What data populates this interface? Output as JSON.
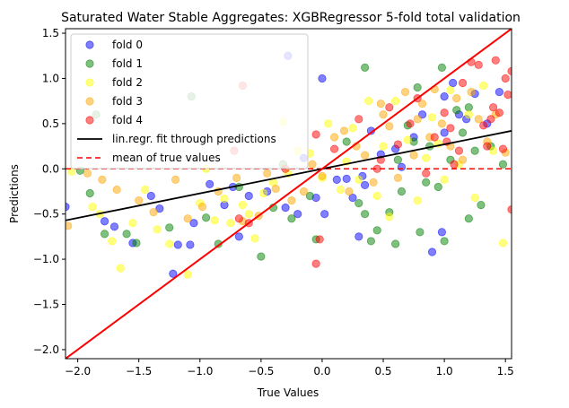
{
  "chart_data": {
    "type": "scatter",
    "title": "Saturated Water Stable Aggregates: XGBRegressor 5-fold total validation",
    "xlabel": "True Values",
    "ylabel": "Predictions",
    "xlim": [
      -2.1,
      1.55
    ],
    "ylim": [
      -2.1,
      1.55
    ],
    "xticks": [
      -2.0,
      -1.5,
      -1.0,
      -0.5,
      0.0,
      0.5,
      1.0,
      1.5
    ],
    "xtick_labels": [
      "−2.0",
      "−1.5",
      "−1.0",
      "−0.5",
      "0.0",
      "0.5",
      "1.0",
      "1.5"
    ],
    "yticks": [
      -2.0,
      -1.5,
      -1.0,
      -0.5,
      0.0,
      0.5,
      1.0,
      1.5
    ],
    "ytick_labels": [
      "−2.0",
      "−1.5",
      "−1.0",
      "−0.5",
      "0.0",
      "0.5",
      "1.0",
      "1.5"
    ],
    "grid": false,
    "legend_position": "top-left",
    "series": [
      {
        "name": "fold 0",
        "color": "#0000ff",
        "points": [
          [
            -2.1,
            -0.42
          ],
          [
            -1.78,
            -0.58
          ],
          [
            -1.7,
            -0.64
          ],
          [
            -1.55,
            -0.82
          ],
          [
            -1.4,
            -0.3
          ],
          [
            -1.33,
            -0.44
          ],
          [
            -1.22,
            -1.16
          ],
          [
            -1.18,
            -0.84
          ],
          [
            -1.08,
            -0.84
          ],
          [
            -1.05,
            -0.6
          ],
          [
            -0.92,
            -0.17
          ],
          [
            -0.8,
            -0.4
          ],
          [
            -0.73,
            -0.2
          ],
          [
            -0.68,
            -0.75
          ],
          [
            -0.6,
            -0.3
          ],
          [
            -0.45,
            -0.25
          ],
          [
            -0.3,
            -0.43
          ],
          [
            -0.28,
            1.25
          ],
          [
            -0.2,
            -0.5
          ],
          [
            -0.05,
            -0.32
          ],
          [
            0.0,
            1.0
          ],
          [
            0.02,
            -0.5
          ],
          [
            0.12,
            -0.12
          ],
          [
            0.2,
            -0.11
          ],
          [
            0.25,
            -0.32
          ],
          [
            0.3,
            -0.75
          ],
          [
            0.33,
            -0.08
          ],
          [
            0.35,
            -0.18
          ],
          [
            0.4,
            0.42
          ],
          [
            0.48,
            0.16
          ],
          [
            0.6,
            0.22
          ],
          [
            0.75,
            0.35
          ],
          [
            0.82,
            0.6
          ],
          [
            0.9,
            -0.92
          ],
          [
            0.98,
            -0.7
          ],
          [
            1.0,
            0.8
          ],
          [
            1.07,
            0.95
          ],
          [
            1.12,
            0.6
          ],
          [
            1.18,
            0.55
          ],
          [
            1.25,
            0.83
          ],
          [
            1.35,
            0.5
          ],
          [
            1.45,
            0.85
          ],
          [
            1.0,
            0.4
          ],
          [
            0.65,
            0.02
          ],
          [
            -0.15,
            0.12
          ]
        ]
      },
      {
        "name": "fold 1",
        "color": "#008000",
        "points": [
          [
            -1.98,
            -0.02
          ],
          [
            -1.9,
            -0.27
          ],
          [
            -1.85,
            0.6
          ],
          [
            -1.78,
            -0.72
          ],
          [
            -1.6,
            -0.72
          ],
          [
            -1.52,
            -0.82
          ],
          [
            -1.25,
            -0.65
          ],
          [
            -1.07,
            0.8
          ],
          [
            -0.95,
            -0.54
          ],
          [
            -0.85,
            -0.83
          ],
          [
            -0.68,
            -0.2
          ],
          [
            -0.5,
            -0.97
          ],
          [
            -0.4,
            -0.43
          ],
          [
            -0.32,
            0.05
          ],
          [
            -0.25,
            -0.55
          ],
          [
            -0.1,
            -0.3
          ],
          [
            -0.05,
            -0.78
          ],
          [
            0.2,
            0.3
          ],
          [
            0.3,
            -0.38
          ],
          [
            0.35,
            -0.5
          ],
          [
            0.4,
            -0.8
          ],
          [
            0.45,
            -0.68
          ],
          [
            0.55,
            -0.48
          ],
          [
            0.6,
            -0.83
          ],
          [
            0.62,
            0.1
          ],
          [
            0.65,
            -0.25
          ],
          [
            0.7,
            0.48
          ],
          [
            0.75,
            0.3
          ],
          [
            0.8,
            -0.7
          ],
          [
            0.85,
            -0.15
          ],
          [
            0.88,
            0.25
          ],
          [
            0.95,
            -0.2
          ],
          [
            1.0,
            -0.8
          ],
          [
            1.05,
            0.1
          ],
          [
            1.1,
            0.65
          ],
          [
            1.15,
            0.4
          ],
          [
            1.2,
            -0.55
          ],
          [
            1.25,
            0.2
          ],
          [
            1.3,
            -0.4
          ],
          [
            1.38,
            0.25
          ],
          [
            1.48,
            0.05
          ],
          [
            0.35,
            1.12
          ],
          [
            0.98,
            1.12
          ],
          [
            0.78,
            0.9
          ],
          [
            1.2,
            0.68
          ]
        ]
      },
      {
        "name": "fold 2",
        "color": "#ffff00",
        "points": [
          [
            -2.05,
            -0.03
          ],
          [
            -1.88,
            -0.42
          ],
          [
            -1.82,
            -0.5
          ],
          [
            -1.72,
            -0.8
          ],
          [
            -1.65,
            -1.1
          ],
          [
            -1.55,
            -0.6
          ],
          [
            -1.45,
            -0.23
          ],
          [
            -1.35,
            -0.67
          ],
          [
            -1.25,
            -0.83
          ],
          [
            -1.1,
            -1.17
          ],
          [
            -1.0,
            -0.38
          ],
          [
            -0.95,
            0.0
          ],
          [
            -0.88,
            -0.57
          ],
          [
            -0.8,
            -0.33
          ],
          [
            -0.75,
            -0.6
          ],
          [
            -0.65,
            -0.4
          ],
          [
            -0.55,
            -0.77
          ],
          [
            -0.48,
            -0.27
          ],
          [
            -0.4,
            -0.15
          ],
          [
            -0.32,
            0.52
          ],
          [
            -0.28,
            -0.05
          ],
          [
            -0.2,
            0.2
          ],
          [
            -0.1,
            0.17
          ],
          [
            0.0,
            -0.1
          ],
          [
            0.05,
            0.5
          ],
          [
            0.15,
            -0.23
          ],
          [
            0.25,
            0.45
          ],
          [
            0.3,
            -0.12
          ],
          [
            0.38,
            0.75
          ],
          [
            0.45,
            -0.3
          ],
          [
            0.5,
            0.25
          ],
          [
            0.55,
            -0.53
          ],
          [
            0.6,
            0.75
          ],
          [
            0.7,
            0.32
          ],
          [
            0.78,
            -0.35
          ],
          [
            0.85,
            0.12
          ],
          [
            0.9,
            0.57
          ],
          [
            0.95,
            0.28
          ],
          [
            1.0,
            -0.12
          ],
          [
            1.05,
            0.87
          ],
          [
            1.12,
            0.05
          ],
          [
            1.2,
            0.6
          ],
          [
            1.25,
            -0.32
          ],
          [
            1.32,
            0.92
          ],
          [
            1.4,
            0.2
          ],
          [
            1.48,
            -0.82
          ],
          [
            -0.6,
            -0.5
          ],
          [
            0.2,
            0.08
          ]
        ]
      },
      {
        "name": "fold 3",
        "color": "#ffa500",
        "points": [
          [
            -2.08,
            -0.63
          ],
          [
            -1.92,
            -0.05
          ],
          [
            -1.8,
            -0.12
          ],
          [
            -1.68,
            -0.23
          ],
          [
            -1.5,
            -0.35
          ],
          [
            -1.38,
            -0.48
          ],
          [
            -1.2,
            -0.12
          ],
          [
            -1.1,
            -0.55
          ],
          [
            -0.98,
            -0.42
          ],
          [
            -0.85,
            -0.25
          ],
          [
            -0.7,
            -0.1
          ],
          [
            -0.65,
            -0.58
          ],
          [
            -0.52,
            -0.52
          ],
          [
            -0.45,
            -0.05
          ],
          [
            -0.38,
            -0.22
          ],
          [
            -0.25,
            -0.35
          ],
          [
            -0.15,
            -0.25
          ],
          [
            -0.08,
            0.05
          ],
          [
            0.0,
            -0.08
          ],
          [
            0.1,
            0.35
          ],
          [
            0.18,
            0.42
          ],
          [
            0.22,
            -0.25
          ],
          [
            0.28,
            0.25
          ],
          [
            0.35,
            0.15
          ],
          [
            0.42,
            -0.15
          ],
          [
            0.48,
            0.72
          ],
          [
            0.5,
            0.6
          ],
          [
            0.55,
            0.47
          ],
          [
            0.62,
            -0.1
          ],
          [
            0.68,
            0.85
          ],
          [
            0.75,
            0.15
          ],
          [
            0.82,
            0.72
          ],
          [
            0.88,
            0.35
          ],
          [
            0.92,
            0.88
          ],
          [
            0.98,
            0.5
          ],
          [
            1.05,
            0.25
          ],
          [
            1.1,
            0.78
          ],
          [
            1.15,
            0.1
          ],
          [
            1.22,
            0.85
          ],
          [
            1.28,
            0.55
          ],
          [
            1.35,
            0.3
          ],
          [
            1.42,
            0.6
          ],
          [
            1.5,
            0.18
          ],
          [
            0.78,
            0.55
          ]
        ]
      },
      {
        "name": "fold 4",
        "color": "#ff0000",
        "points": [
          [
            -0.72,
            0.2
          ],
          [
            -0.65,
            0.92
          ],
          [
            -0.3,
            0.0
          ],
          [
            -0.05,
            0.38
          ],
          [
            -0.02,
            -0.78
          ],
          [
            -0.05,
            -1.05
          ],
          [
            0.1,
            0.22
          ],
          [
            0.3,
            0.55
          ],
          [
            0.45,
            0.0
          ],
          [
            0.55,
            0.68
          ],
          [
            0.62,
            0.27
          ],
          [
            0.72,
            0.5
          ],
          [
            0.78,
            0.78
          ],
          [
            0.85,
            -0.05
          ],
          [
            0.92,
            0.35
          ],
          [
            1.0,
            0.62
          ],
          [
            1.02,
            0.3
          ],
          [
            1.08,
            0.05
          ],
          [
            1.12,
            0.2
          ],
          [
            1.15,
            0.95
          ],
          [
            1.22,
            1.18
          ],
          [
            1.28,
            1.15
          ],
          [
            1.32,
            0.48
          ],
          [
            1.35,
            0.25
          ],
          [
            1.4,
            0.68
          ],
          [
            1.45,
            0.62
          ],
          [
            1.48,
            0.22
          ],
          [
            1.52,
            0.82
          ],
          [
            1.55,
            1.08
          ],
          [
            1.5,
            1.0
          ],
          [
            1.42,
            1.2
          ],
          [
            1.38,
            0.55
          ],
          [
            1.55,
            -0.45
          ],
          [
            -0.6,
            -0.6
          ],
          [
            0.48,
            0.1
          ],
          [
            1.05,
            0.45
          ],
          [
            -0.68,
            -0.55
          ]
        ]
      }
    ],
    "fit_line": {
      "name": "lin.regr. fit through predictions",
      "color": "#000000",
      "x": [
        -2.1,
        1.55
      ],
      "y": [
        -0.57,
        0.42
      ]
    },
    "mean_line": {
      "name": "mean of true values",
      "color": "#ff0000",
      "style": "dashed",
      "y": 0.0
    },
    "identity_line": {
      "color": "#ff0000",
      "x": [
        -2.1,
        1.55
      ],
      "y": [
        -2.1,
        1.55
      ]
    }
  }
}
